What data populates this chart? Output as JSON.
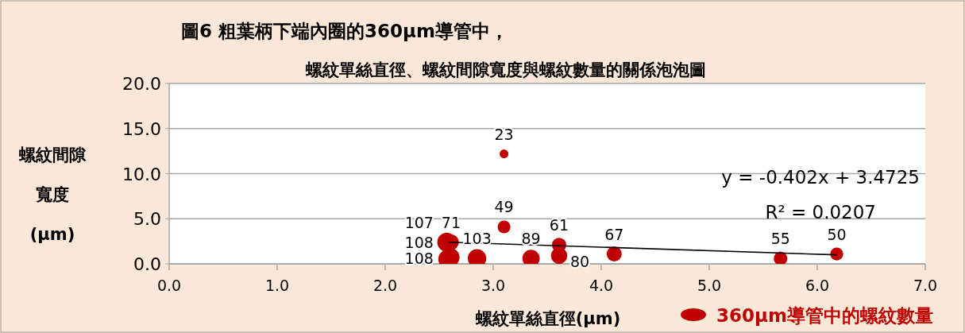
{
  "chart_data": {
    "type": "bubble",
    "title": "圖6  粗葉柄下端內圈的360μm導管中，",
    "subtitle": "螺紋單絲直徑、螺紋間隙寬度與螺紋數量的關係泡泡圖",
    "xlabel": "螺紋單絲直徑(μm)",
    "ylabel": "螺紋間隙寬度(μm)",
    "xlim": [
      0,
      7
    ],
    "xticks": [
      {
        "value": 0,
        "label": "0.0"
      },
      {
        "value": 1,
        "label": "1.0"
      },
      {
        "value": 2,
        "label": "2.0"
      },
      {
        "value": 3,
        "label": "3.0"
      },
      {
        "value": 4,
        "label": "4.0"
      },
      {
        "value": 5,
        "label": "5.0"
      },
      {
        "value": 6,
        "label": "6.0"
      },
      {
        "value": 7,
        "label": "7.0"
      }
    ],
    "ylim": [
      0,
      20
    ],
    "yticks": [
      {
        "value": 0,
        "label": "0.0"
      },
      {
        "value": 5,
        "label": "5.0"
      },
      {
        "value": 10,
        "label": "10.0"
      },
      {
        "value": 15,
        "label": "15.0"
      },
      {
        "value": 20,
        "label": "20.0"
      }
    ],
    "grid": "y",
    "legend": "bottom right",
    "series": [
      {
        "name": "360μm導管中的螺紋數量",
        "color": "#c00000",
        "x": [
          2.61,
          2.57,
          2.58,
          2.6,
          2.85,
          3.1,
          3.1,
          3.35,
          3.61,
          3.61,
          4.12,
          5.66,
          6.18
        ],
        "values": [
          2.4,
          2.4,
          0.5,
          0.7,
          0.6,
          4.1,
          12.2,
          0.6,
          2.1,
          0.9,
          1.1,
          0.6,
          1.1
        ],
        "sizes": [
          0.66,
          0.99,
          1,
          1,
          0.95,
          0.45,
          0.21,
          0.82,
          0.56,
          0.74,
          0.62,
          0.51,
          0.46
        ]
      },
      {
        "type": "line",
        "color": "#000000",
        "x": [
          2.59,
          6.18
        ],
        "values": [
          2.4,
          1.0
        ]
      }
    ],
    "annotations": [
      "y = -0.402x + 3.4725",
      "R² = 0.0207",
      {
        "text": "71",
        "x": 2.61,
        "y": 2.4
      },
      {
        "text": "107",
        "x": 2.57,
        "y": 2.4
      },
      {
        "text": "108",
        "x": 2.58,
        "y": 0.5
      },
      {
        "text": "108",
        "x": 2.6,
        "y": 0.7
      },
      {
        "text": "103",
        "x": 2.85,
        "y": 0.6
      },
      {
        "text": "49",
        "x": 3.1,
        "y": 4.1
      },
      {
        "text": "23",
        "x": 3.1,
        "y": 12.2
      },
      {
        "text": "89",
        "x": 3.35,
        "y": 0.6
      },
      {
        "text": "61",
        "x": 3.61,
        "y": 2.1
      },
      {
        "text": "80",
        "x": 3.61,
        "y": 0.9
      },
      {
        "text": "67",
        "x": 4.12,
        "y": 1.1
      },
      {
        "text": "55",
        "x": 5.66,
        "y": 0.6
      },
      {
        "text": "50",
        "x": 6.18,
        "y": 1.1
      }
    ]
  }
}
